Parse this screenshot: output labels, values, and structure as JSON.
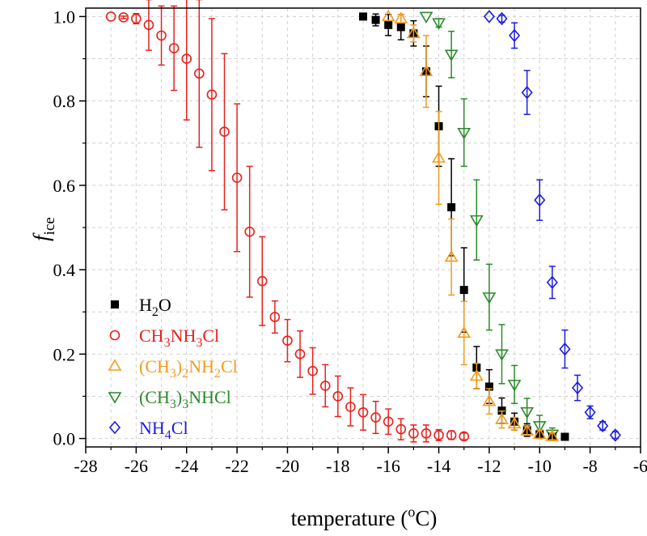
{
  "chart_data": {
    "type": "scatter",
    "xlabel": {
      "main": "temperature (",
      "sup": "o",
      "after": "C)"
    },
    "ylabel": {
      "main": "f",
      "sub": "ice"
    },
    "xlim": [
      -28,
      -6
    ],
    "ylim": [
      -0.02,
      1.02
    ],
    "x_ticks": [
      -28,
      -26,
      -24,
      -22,
      -20,
      -18,
      -16,
      -14,
      -12,
      -10,
      -8,
      -6
    ],
    "x_tick_labels": [
      "-28",
      "-26",
      "-24",
      "-22",
      "-20",
      "-18",
      "-16",
      "-14",
      "-12",
      "-10",
      "-8",
      "-6"
    ],
    "y_ticks": [
      0.0,
      0.2,
      0.4,
      0.6,
      0.8,
      1.0
    ],
    "y_tick_labels": [
      "0.0",
      "0.2",
      "0.4",
      "0.6",
      "0.8",
      "1.0"
    ],
    "grid": true,
    "legend_position": "bottom-left",
    "series": [
      {
        "name": "H2O",
        "legend": [
          {
            "t": "H"
          },
          {
            "t": "2",
            "sub": true
          },
          {
            "t": "O"
          }
        ],
        "color": "#000000",
        "marker": "square-filled",
        "points": [
          [
            -17.0,
            1.0,
            0.0
          ],
          [
            -16.5,
            0.992,
            0.014
          ],
          [
            -16.0,
            0.98,
            0.025
          ],
          [
            -15.5,
            0.975,
            0.03
          ],
          [
            -15.0,
            0.96,
            0.03
          ],
          [
            -14.5,
            0.87,
            0.06
          ],
          [
            -14.0,
            0.74,
            0.095
          ],
          [
            -13.5,
            0.548,
            0.115
          ],
          [
            -13.0,
            0.352,
            0.1
          ],
          [
            -12.5,
            0.168,
            0.05
          ],
          [
            -12.0,
            0.123,
            0.04
          ],
          [
            -11.5,
            0.066,
            0.03
          ],
          [
            -11.0,
            0.04,
            0.02
          ],
          [
            -10.5,
            0.02,
            0.015
          ],
          [
            -10.0,
            0.01,
            0.01
          ],
          [
            -9.5,
            0.005,
            0.005
          ],
          [
            -9.0,
            0.004,
            0.0
          ]
        ]
      },
      {
        "name": "CH3NH3Cl",
        "legend": [
          {
            "t": "CH"
          },
          {
            "t": "3",
            "sub": true
          },
          {
            "t": "NH"
          },
          {
            "t": "3",
            "sub": true
          },
          {
            "t": "Cl"
          }
        ],
        "color": "#e8211b",
        "marker": "circle-open",
        "points": [
          [
            -27.0,
            1.0,
            0.0
          ],
          [
            -26.5,
            0.998,
            0.003
          ],
          [
            -26.0,
            0.995,
            0.012
          ],
          [
            -25.5,
            0.98,
            0.06
          ],
          [
            -25.0,
            0.955,
            0.07
          ],
          [
            -24.5,
            0.925,
            0.1
          ],
          [
            -24.0,
            0.9,
            0.145
          ],
          [
            -23.5,
            0.865,
            0.175
          ],
          [
            -23.0,
            0.815,
            0.18
          ],
          [
            -22.5,
            0.727,
            0.185
          ],
          [
            -22.0,
            0.618,
            0.175
          ],
          [
            -21.5,
            0.49,
            0.155
          ],
          [
            -21.0,
            0.373,
            0.105
          ],
          [
            -20.5,
            0.288,
            0.038
          ],
          [
            -20.0,
            0.232,
            0.05
          ],
          [
            -19.5,
            0.2,
            0.055
          ],
          [
            -19.0,
            0.16,
            0.055
          ],
          [
            -18.5,
            0.125,
            0.05
          ],
          [
            -18.0,
            0.1,
            0.048
          ],
          [
            -17.5,
            0.075,
            0.045
          ],
          [
            -17.0,
            0.062,
            0.042
          ],
          [
            -16.5,
            0.05,
            0.038
          ],
          [
            -16.0,
            0.04,
            0.03
          ],
          [
            -15.5,
            0.022,
            0.025
          ],
          [
            -15.0,
            0.012,
            0.02
          ],
          [
            -14.5,
            0.012,
            0.02
          ],
          [
            -14.0,
            0.008,
            0.013
          ],
          [
            -13.5,
            0.008,
            0.01
          ],
          [
            -13.0,
            0.005,
            0.008
          ]
        ]
      },
      {
        "name": "(CH3)2NH2Cl",
        "legend": [
          {
            "t": "(CH"
          },
          {
            "t": "3",
            "sub": true
          },
          {
            "t": ")"
          },
          {
            "t": "2",
            "sub": true
          },
          {
            "t": "NH"
          },
          {
            "t": "2",
            "sub": true
          },
          {
            "t": "Cl"
          }
        ],
        "color": "#f39a1e",
        "marker": "triangle-up-open",
        "points": [
          [
            -16.0,
            1.0,
            0.0
          ],
          [
            -15.5,
            0.995,
            0.01
          ],
          [
            -15.0,
            0.96,
            0.02
          ],
          [
            -14.5,
            0.87,
            0.085
          ],
          [
            -14.0,
            0.665,
            0.11
          ],
          [
            -13.5,
            0.43,
            0.09
          ],
          [
            -13.0,
            0.25,
            0.075
          ],
          [
            -12.5,
            0.148,
            0.03
          ],
          [
            -12.0,
            0.088,
            0.03
          ],
          [
            -11.5,
            0.045,
            0.02
          ],
          [
            -11.0,
            0.035,
            0.015
          ],
          [
            -10.5,
            0.018,
            0.01
          ],
          [
            -10.0,
            0.01,
            0.01
          ],
          [
            -9.5,
            0.005,
            0.008
          ]
        ]
      },
      {
        "name": "(CH3)3NHCl",
        "legend": [
          {
            "t": "(CH"
          },
          {
            "t": "3",
            "sub": true
          },
          {
            "t": ")"
          },
          {
            "t": "3",
            "sub": true
          },
          {
            "t": "NHCl"
          }
        ],
        "color": "#2a8a2a",
        "marker": "triangle-down-open",
        "points": [
          [
            -14.5,
            1.0,
            0.0
          ],
          [
            -14.0,
            0.985,
            0.01
          ],
          [
            -13.5,
            0.91,
            0.055
          ],
          [
            -13.0,
            0.725,
            0.08
          ],
          [
            -12.5,
            0.518,
            0.095
          ],
          [
            -12.0,
            0.335,
            0.078
          ],
          [
            -11.5,
            0.2,
            0.07
          ],
          [
            -11.0,
            0.128,
            0.045
          ],
          [
            -10.5,
            0.063,
            0.032
          ],
          [
            -10.0,
            0.03,
            0.025
          ],
          [
            -9.5,
            0.01,
            0.015
          ]
        ]
      },
      {
        "name": "NH4Cl",
        "legend": [
          {
            "t": "NH"
          },
          {
            "t": "4",
            "sub": true
          },
          {
            "t": "Cl"
          }
        ],
        "color": "#1c1ce0",
        "marker": "diamond-open",
        "points": [
          [
            -12.0,
            1.0,
            0.0
          ],
          [
            -11.5,
            0.995,
            0.008
          ],
          [
            -11.0,
            0.955,
            0.03
          ],
          [
            -10.5,
            0.82,
            0.052
          ],
          [
            -10.0,
            0.565,
            0.048
          ],
          [
            -9.5,
            0.37,
            0.038
          ],
          [
            -9.0,
            0.212,
            0.045
          ],
          [
            -8.5,
            0.12,
            0.03
          ],
          [
            -8.0,
            0.062,
            0.015
          ],
          [
            -7.5,
            0.03,
            0.01
          ],
          [
            -7.0,
            0.008,
            0.008
          ]
        ]
      }
    ]
  }
}
